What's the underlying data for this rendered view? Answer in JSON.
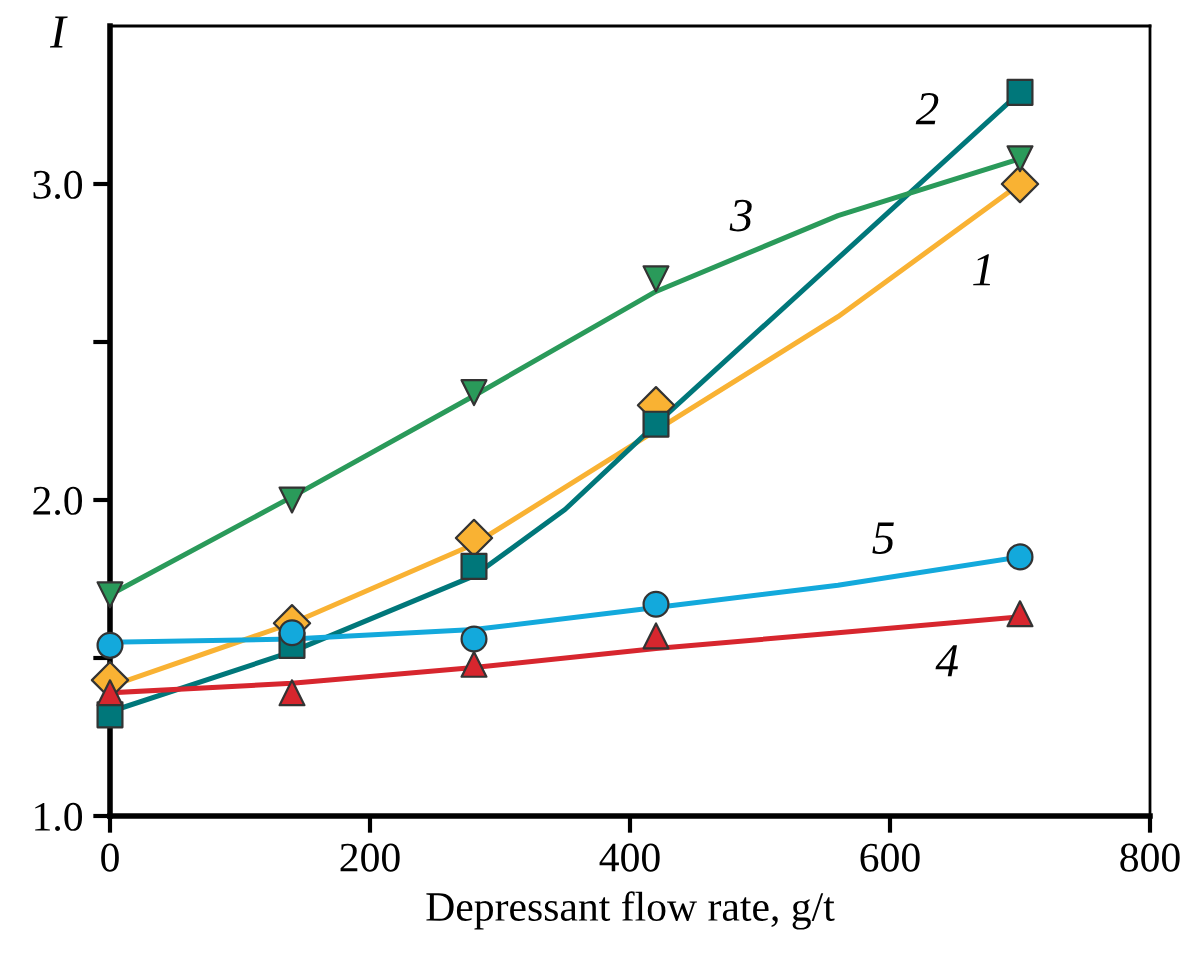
{
  "chart_data": {
    "type": "scatter",
    "xlabel": "Depressant flow rate, g/t",
    "ylabel": "I",
    "xlim": [
      0,
      800
    ],
    "xticks": [
      0,
      200,
      400,
      600,
      800
    ],
    "ylim": [
      1.0,
      3.5
    ],
    "yticks": [
      {
        "value": 1.0,
        "label": "1.0"
      },
      {
        "value": 1.5,
        "label": null
      },
      {
        "value": 2.0,
        "label": "2.0"
      },
      {
        "value": 2.5,
        "label": null
      },
      {
        "value": 3.0,
        "label": "3.0"
      }
    ],
    "grid": false,
    "legend": false,
    "series": [
      {
        "marker": "diamond",
        "color": "#f9b233",
        "x": [
          0,
          140,
          280,
          420,
          700
        ],
        "values": [
          1.43,
          1.61,
          1.88,
          2.3,
          3.0
        ]
      },
      {
        "marker": "square",
        "color": "#00777a",
        "x": [
          0,
          140,
          280,
          420,
          700
        ],
        "values": [
          1.32,
          1.54,
          1.79,
          2.24,
          3.29
        ]
      },
      {
        "marker": "triangle_down",
        "color": "#2a9a5a",
        "x": [
          0,
          140,
          280,
          420,
          700
        ],
        "values": [
          1.7,
          2.0,
          2.34,
          2.7,
          3.08
        ]
      },
      {
        "marker": "triangle",
        "color": "#d7262e",
        "x": [
          0,
          140,
          280,
          420,
          700
        ],
        "values": [
          1.39,
          1.39,
          1.48,
          1.57,
          1.64
        ]
      },
      {
        "marker": "circle",
        "color": "#13a9dc",
        "x": [
          0,
          140,
          280,
          420,
          700
        ],
        "values": [
          1.54,
          1.58,
          1.56,
          1.67,
          1.82
        ]
      },
      {
        "type": "line",
        "name": "1",
        "marker": "none",
        "line_style": "solid",
        "color": "#f9b233",
        "x": [
          0,
          140,
          280,
          420,
          560,
          700
        ],
        "values": [
          1.41,
          1.61,
          1.86,
          2.22,
          2.58,
          3.0
        ]
      },
      {
        "type": "line",
        "name": "2",
        "marker": "none",
        "line_style": "solid",
        "color": "#00777a",
        "x": [
          0,
          140,
          280,
          350,
          420,
          700
        ],
        "values": [
          1.33,
          1.52,
          1.76,
          1.97,
          2.24,
          3.29
        ]
      },
      {
        "type": "line",
        "name": "3",
        "marker": "none",
        "line_style": "solid",
        "color": "#2a9a5a",
        "x": [
          0,
          140,
          280,
          420,
          560,
          700
        ],
        "values": [
          1.7,
          2.01,
          2.33,
          2.66,
          2.9,
          3.08
        ]
      },
      {
        "type": "line",
        "name": "4",
        "marker": "none",
        "line_style": "solid",
        "color": "#d7262e",
        "x": [
          0,
          140,
          280,
          420,
          560,
          700
        ],
        "values": [
          1.39,
          1.42,
          1.47,
          1.53,
          1.58,
          1.63
        ]
      },
      {
        "type": "line",
        "name": "5",
        "marker": "none",
        "line_style": "solid",
        "color": "#13a9dc",
        "x": [
          0,
          140,
          280,
          420,
          560,
          700
        ],
        "values": [
          1.55,
          1.56,
          1.59,
          1.66,
          1.73,
          1.82
        ]
      }
    ]
  }
}
